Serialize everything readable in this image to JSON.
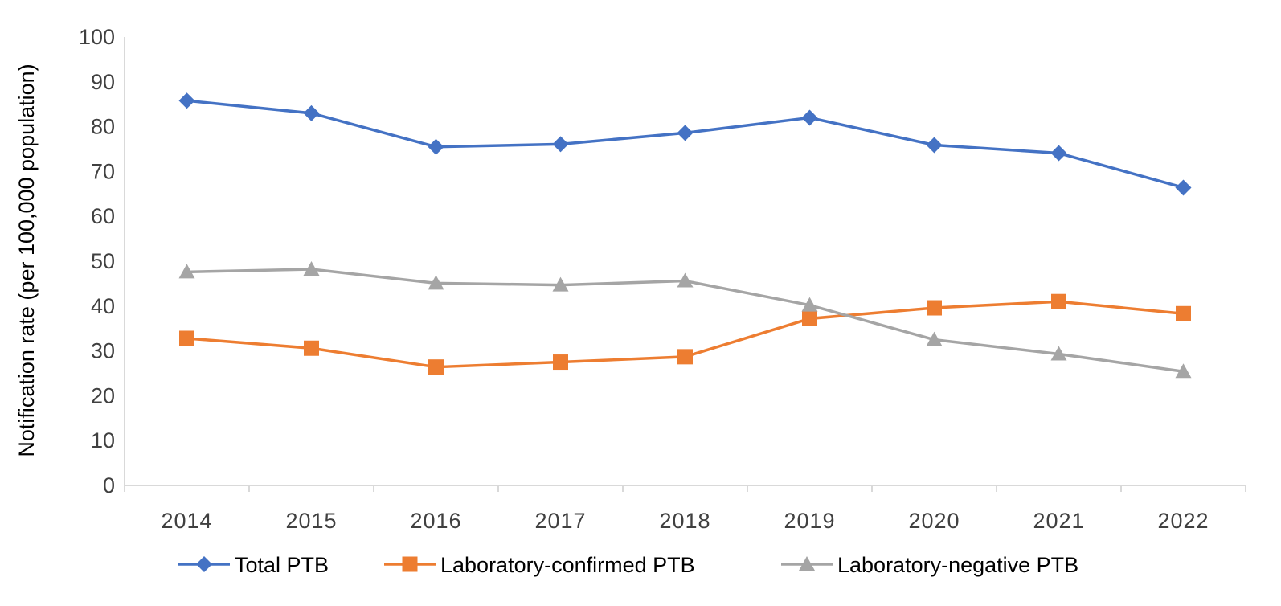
{
  "chart_data": {
    "type": "line",
    "title": "",
    "xlabel": "",
    "ylabel": "Notification rate (per 100,000 population)",
    "categories": [
      "2014",
      "2015",
      "2016",
      "2017",
      "2018",
      "2019",
      "2020",
      "2021",
      "2022"
    ],
    "ylim": [
      0,
      100
    ],
    "yticks": [
      0,
      10,
      20,
      30,
      40,
      50,
      60,
      70,
      80,
      90,
      100
    ],
    "grid": false,
    "legend_position": "bottom",
    "series": [
      {
        "name": "Total PTB",
        "color": "#4472C4",
        "marker": "diamond",
        "values": [
          85.8,
          83.0,
          75.5,
          76.1,
          78.6,
          82.0,
          75.9,
          74.1,
          66.4
        ]
      },
      {
        "name": "Laboratory-confirmed PTB",
        "color": "#ED7D31",
        "marker": "square",
        "values": [
          32.8,
          30.6,
          26.4,
          27.5,
          28.7,
          37.2,
          39.6,
          41.0,
          38.3
        ]
      },
      {
        "name": "Laboratory-negative PTB",
        "color": "#A5A5A5",
        "marker": "triangle",
        "values": [
          47.6,
          48.2,
          45.1,
          44.7,
          45.6,
          40.2,
          32.5,
          29.3,
          25.4
        ]
      }
    ]
  }
}
